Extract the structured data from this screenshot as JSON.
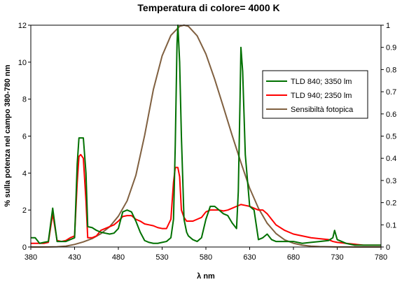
{
  "chart_data": {
    "type": "line",
    "title": "Temperatura di colore= 4000 K",
    "xlabel": "λ nm",
    "ylabel": "% sulla potenza nel campo 380-780 nm",
    "xlim": [
      380,
      780
    ],
    "ylim": [
      0,
      12
    ],
    "y2lim": [
      0,
      1
    ],
    "x_ticks": [
      380,
      430,
      480,
      530,
      580,
      630,
      680,
      730,
      780
    ],
    "y_ticks": [
      0,
      2,
      4,
      6,
      8,
      10,
      12
    ],
    "y2_ticks": [
      "0",
      "0.1",
      "0.2",
      "0.3",
      "0.4",
      "0.5",
      "0.6",
      "0.7",
      "0.8",
      "0.9",
      "1"
    ],
    "y2_tick_values": [
      0,
      0.1,
      0.2,
      0.3,
      0.4,
      0.5,
      0.6,
      0.7,
      0.8,
      0.9,
      1
    ],
    "grid": false,
    "legend_position": "right",
    "series": [
      {
        "name": "TLD 840;  3350 lm",
        "color": "#007000",
        "axis": "left",
        "x": [
          380,
          385,
          390,
          395,
          400,
          405,
          410,
          415,
          420,
          425,
          430,
          433,
          435,
          437,
          440,
          443,
          445,
          450,
          455,
          460,
          465,
          470,
          475,
          480,
          485,
          490,
          495,
          500,
          505,
          510,
          515,
          520,
          525,
          530,
          535,
          540,
          543,
          545,
          547,
          548,
          550,
          552,
          555,
          558,
          560,
          565,
          570,
          575,
          580,
          585,
          590,
          595,
          600,
          605,
          610,
          615,
          617,
          619,
          620,
          622,
          625,
          630,
          635,
          640,
          645,
          650,
          655,
          660,
          670,
          680,
          690,
          700,
          710,
          720,
          725,
          727,
          730,
          740,
          750,
          760,
          770,
          780
        ],
        "y": [
          0.5,
          0.5,
          0.2,
          0.25,
          0.3,
          2.1,
          0.3,
          0.3,
          0.3,
          0.4,
          0.5,
          4.5,
          5.9,
          5.9,
          5.9,
          4.0,
          1.1,
          1.05,
          0.9,
          0.8,
          0.75,
          0.7,
          0.75,
          1.0,
          1.9,
          2.0,
          1.9,
          1.4,
          0.8,
          0.35,
          0.25,
          0.2,
          0.2,
          0.25,
          0.3,
          0.5,
          1.5,
          5.5,
          11.0,
          12.0,
          10.0,
          6.0,
          1.5,
          0.8,
          0.6,
          0.4,
          0.3,
          0.5,
          1.5,
          2.2,
          2.2,
          2.0,
          1.8,
          1.7,
          1.3,
          1.0,
          3.0,
          8.0,
          10.8,
          9.5,
          5.0,
          2.2,
          2.0,
          0.4,
          0.5,
          0.7,
          0.4,
          0.3,
          0.3,
          0.3,
          0.2,
          0.25,
          0.3,
          0.35,
          0.5,
          0.9,
          0.4,
          0.2,
          0.1,
          0.1,
          0.1,
          0.1
        ]
      },
      {
        "name": "TLD 940;  2350 lm",
        "color": "#ff0000",
        "axis": "left",
        "x": [
          380,
          385,
          390,
          395,
          400,
          405,
          410,
          415,
          420,
          425,
          430,
          433,
          435,
          437,
          440,
          443,
          445,
          450,
          455,
          460,
          465,
          470,
          475,
          480,
          485,
          490,
          495,
          500,
          505,
          510,
          515,
          520,
          525,
          530,
          535,
          540,
          543,
          545,
          547,
          548,
          550,
          552,
          555,
          558,
          560,
          565,
          570,
          575,
          580,
          585,
          590,
          595,
          600,
          605,
          610,
          615,
          620,
          625,
          630,
          635,
          640,
          645,
          650,
          655,
          660,
          670,
          680,
          690,
          700,
          710,
          720,
          725,
          730,
          740,
          750,
          760,
          770,
          780
        ],
        "y": [
          0.2,
          0.2,
          0.2,
          0.2,
          0.25,
          1.8,
          0.35,
          0.3,
          0.35,
          0.5,
          0.6,
          3.5,
          4.9,
          5.0,
          4.8,
          2.5,
          0.5,
          0.5,
          0.6,
          0.9,
          1.0,
          1.1,
          1.2,
          1.4,
          1.65,
          1.7,
          1.7,
          1.5,
          1.4,
          1.25,
          1.2,
          1.15,
          1.05,
          1.0,
          1.0,
          1.5,
          3.5,
          4.3,
          4.3,
          4.3,
          3.8,
          2.0,
          1.6,
          1.4,
          1.4,
          1.4,
          1.5,
          1.6,
          1.9,
          2.0,
          2.0,
          2.0,
          1.95,
          2.0,
          2.1,
          2.2,
          2.3,
          2.25,
          2.2,
          2.1,
          2.0,
          2.0,
          1.8,
          1.5,
          1.2,
          0.9,
          0.7,
          0.6,
          0.5,
          0.45,
          0.4,
          0.3,
          0.25,
          0.2,
          0.15,
          0.1,
          0.1,
          0.1
        ]
      },
      {
        "name": "Sensibiltà fotopica",
        "color": "#806040",
        "axis": "right",
        "x": [
          380,
          390,
          400,
          410,
          420,
          430,
          440,
          450,
          460,
          470,
          480,
          490,
          500,
          510,
          520,
          530,
          540,
          550,
          555,
          560,
          570,
          580,
          590,
          600,
          610,
          620,
          630,
          640,
          650,
          660,
          670,
          680,
          690,
          700,
          710,
          720,
          730,
          740,
          750,
          760,
          770,
          780
        ],
        "y": [
          0,
          0.0001,
          0.0004,
          0.0012,
          0.004,
          0.0116,
          0.023,
          0.038,
          0.06,
          0.091,
          0.139,
          0.208,
          0.323,
          0.503,
          0.71,
          0.862,
          0.954,
          0.995,
          1.0,
          0.995,
          0.952,
          0.87,
          0.757,
          0.631,
          0.503,
          0.381,
          0.265,
          0.175,
          0.107,
          0.061,
          0.032,
          0.017,
          0.0082,
          0.0041,
          0.0021,
          0.001,
          0.0005,
          0.0003,
          0.0001,
          0.0001,
          0,
          0
        ]
      }
    ]
  }
}
